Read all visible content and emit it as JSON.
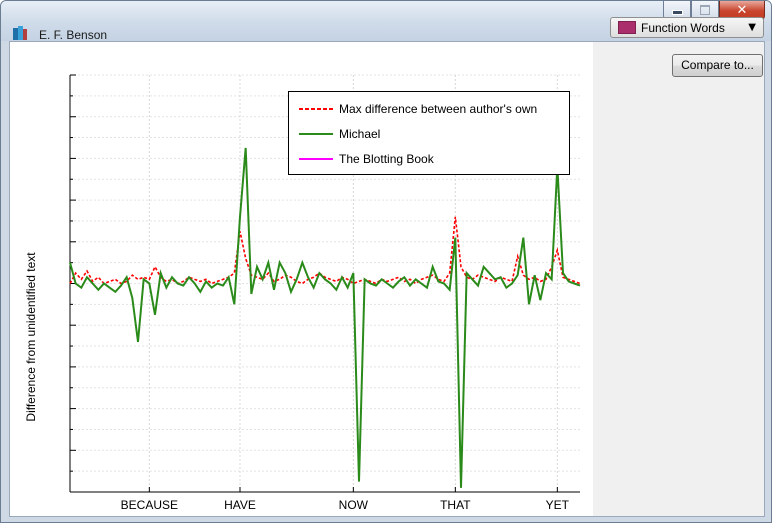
{
  "window": {
    "title": "E. F. Benson",
    "buttons": {
      "minimize": "minimize-icon",
      "maximize": "maximize-icon",
      "close": "close-icon"
    }
  },
  "sidebar": {
    "dropdown": {
      "selected": "Function Words",
      "swatch_color": "#aa2e6c"
    },
    "compare_button": "Compare to..."
  },
  "plot_tools": {
    "settings": "gear-icon",
    "collapse": "minus-icon"
  },
  "chart_data": {
    "type": "line",
    "ylabel": "Difference from unidentified text",
    "xlabel": "",
    "x_tick_labels": [
      {
        "label": "BECAUSE",
        "index": 14
      },
      {
        "label": "HAVE",
        "index": 30
      },
      {
        "label": "NOW",
        "index": 50
      },
      {
        "label": "THAT",
        "index": 68
      },
      {
        "label": "YET",
        "index": 86
      }
    ],
    "x_range": [
      0,
      90
    ],
    "y_range": [
      -1.0,
      1.0
    ],
    "grid": true,
    "legend_position": "top-right",
    "series": [
      {
        "name": "Max difference between author's own",
        "color": "#ff0000",
        "style": "dashed",
        "values": [
          0.0,
          0.05,
          0.02,
          0.06,
          0.01,
          0.03,
          0.0,
          0.01,
          0.02,
          0.0,
          0.01,
          0.04,
          0.02,
          0.03,
          0.02,
          0.08,
          0.03,
          0.01,
          0.02,
          0.0,
          0.01,
          0.03,
          0.02,
          0.01,
          0.02,
          0.0,
          0.01,
          0.02,
          0.03,
          0.05,
          0.25,
          0.12,
          0.04,
          0.03,
          0.02,
          0.05,
          0.01,
          0.02,
          0.04,
          0.03,
          0.01,
          0.0,
          0.02,
          0.03,
          0.05,
          0.03,
          0.02,
          0.01,
          0.03,
          0.02,
          0.0,
          0.01,
          0.02,
          0.01,
          0.0,
          0.02,
          0.01,
          0.02,
          0.03,
          0.01,
          0.02,
          0.0,
          0.02,
          0.03,
          0.04,
          0.02,
          0.01,
          0.05,
          0.32,
          0.08,
          0.03,
          0.02,
          0.04,
          0.03,
          0.02,
          0.01,
          0.03,
          0.02,
          0.01,
          0.13,
          0.04,
          0.02,
          0.03,
          0.01,
          0.02,
          0.08,
          0.16,
          0.03,
          0.02,
          0.01,
          0.0
        ]
      },
      {
        "name": "Michael",
        "color": "#2a8a1a",
        "style": "solid",
        "values": [
          0.1,
          0.0,
          -0.02,
          0.03,
          0.0,
          -0.03,
          0.0,
          -0.02,
          -0.04,
          -0.01,
          0.03,
          -0.07,
          -0.28,
          0.02,
          0.0,
          -0.15,
          0.05,
          -0.02,
          0.03,
          0.0,
          -0.01,
          0.03,
          0.0,
          -0.04,
          0.01,
          -0.02,
          0.0,
          -0.01,
          0.03,
          -0.1,
          0.32,
          0.65,
          -0.05,
          0.08,
          0.02,
          0.1,
          -0.03,
          0.1,
          0.05,
          -0.04,
          0.02,
          0.1,
          0.03,
          -0.02,
          0.05,
          0.02,
          0.0,
          -0.03,
          0.03,
          -0.02,
          0.05,
          -0.95,
          0.02,
          0.0,
          -0.01,
          0.02,
          0.0,
          -0.02,
          0.01,
          0.03,
          -0.01,
          0.02,
          0.0,
          -0.02,
          0.08,
          0.01,
          0.0,
          -0.03,
          0.22,
          -0.98,
          0.05,
          0.02,
          -0.01,
          0.08,
          0.05,
          0.02,
          0.03,
          -0.02,
          0.0,
          0.04,
          0.22,
          -0.1,
          0.04,
          -0.08,
          0.05,
          0.02,
          0.56,
          0.05,
          0.01,
          0.0,
          -0.01
        ]
      },
      {
        "name": "The Blotting Book",
        "color": "#ff00ff",
        "style": "solid",
        "values": []
      }
    ]
  }
}
